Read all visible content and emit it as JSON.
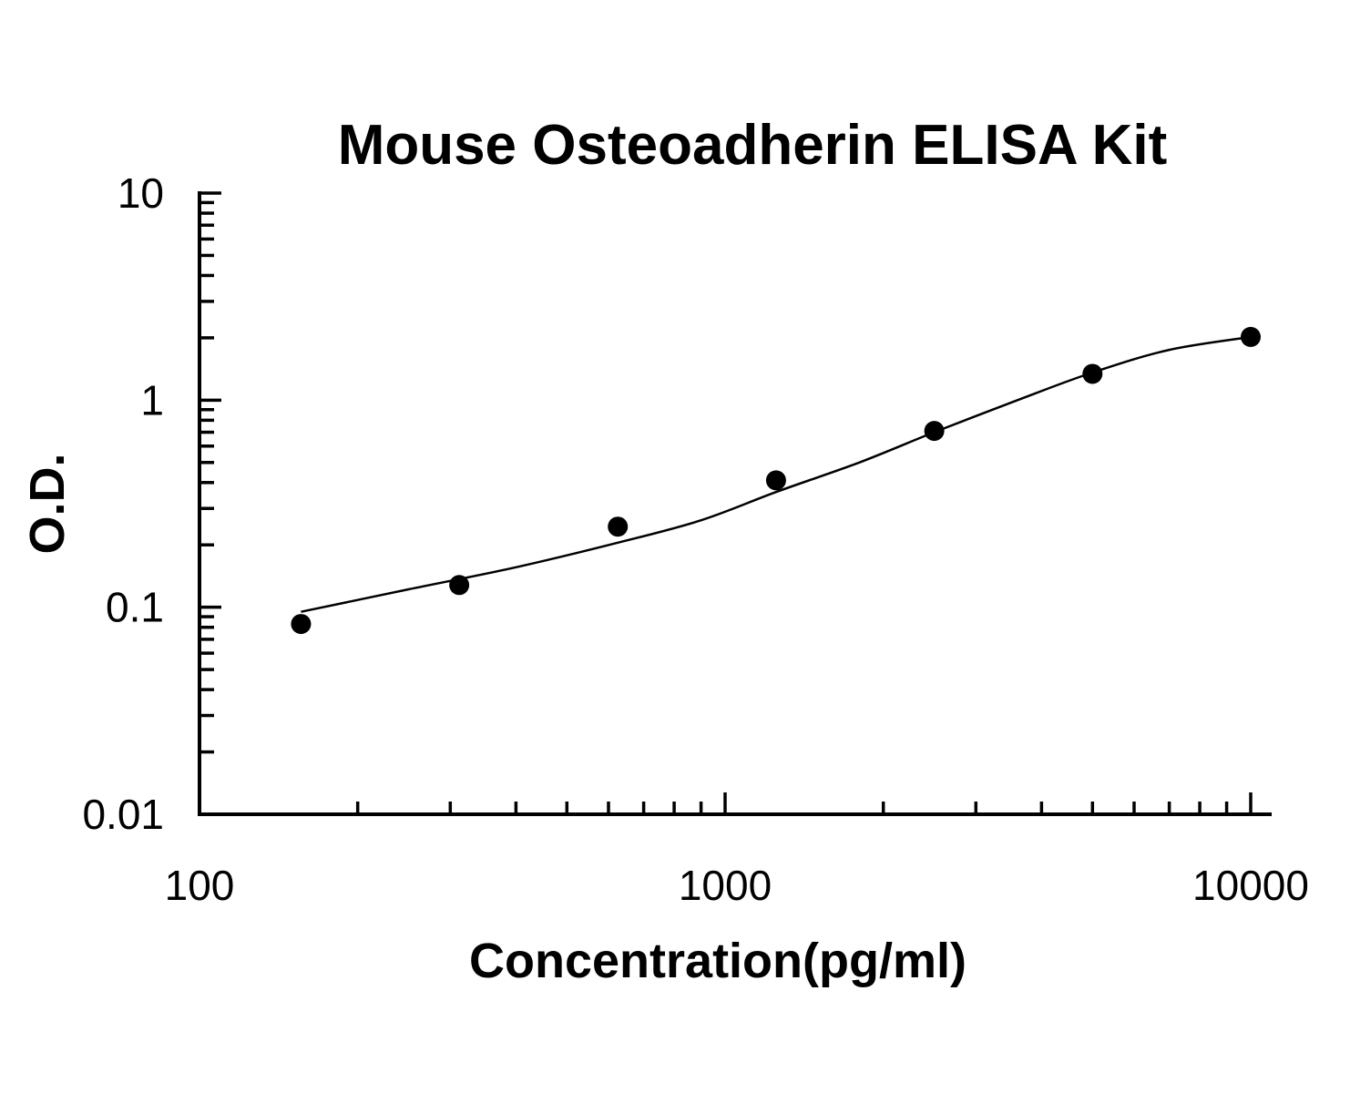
{
  "chart_data": {
    "type": "scatter",
    "title": "Mouse Osteoadherin ELISA Kit",
    "xlabel": "Concentration(pg/ml)",
    "ylabel": "O.D.",
    "x_scale": "log",
    "y_scale": "log",
    "xlim": [
      100,
      10000
    ],
    "ylim": [
      0.01,
      10
    ],
    "x_tick_labels": [
      "100",
      "1000",
      "10000"
    ],
    "y_tick_labels": [
      "0.01",
      "0.1",
      "1",
      "10"
    ],
    "grid": false,
    "series": [
      {
        "points": [
          {
            "x": 156,
            "y": 0.083
          },
          {
            "x": 312,
            "y": 0.128
          },
          {
            "x": 625,
            "y": 0.245
          },
          {
            "x": 1250,
            "y": 0.41
          },
          {
            "x": 2500,
            "y": 0.71
          },
          {
            "x": 5000,
            "y": 1.34
          },
          {
            "x": 10000,
            "y": 2.02
          }
        ]
      }
    ],
    "fit_curve": {
      "x": [
        156,
        250,
        400,
        625,
        900,
        1250,
        1800,
        2500,
        3600,
        5000,
        7000,
        10000
      ],
      "y": [
        0.095,
        0.122,
        0.156,
        0.205,
        0.263,
        0.36,
        0.5,
        0.7,
        1.0,
        1.36,
        1.75,
        2.02
      ]
    }
  }
}
